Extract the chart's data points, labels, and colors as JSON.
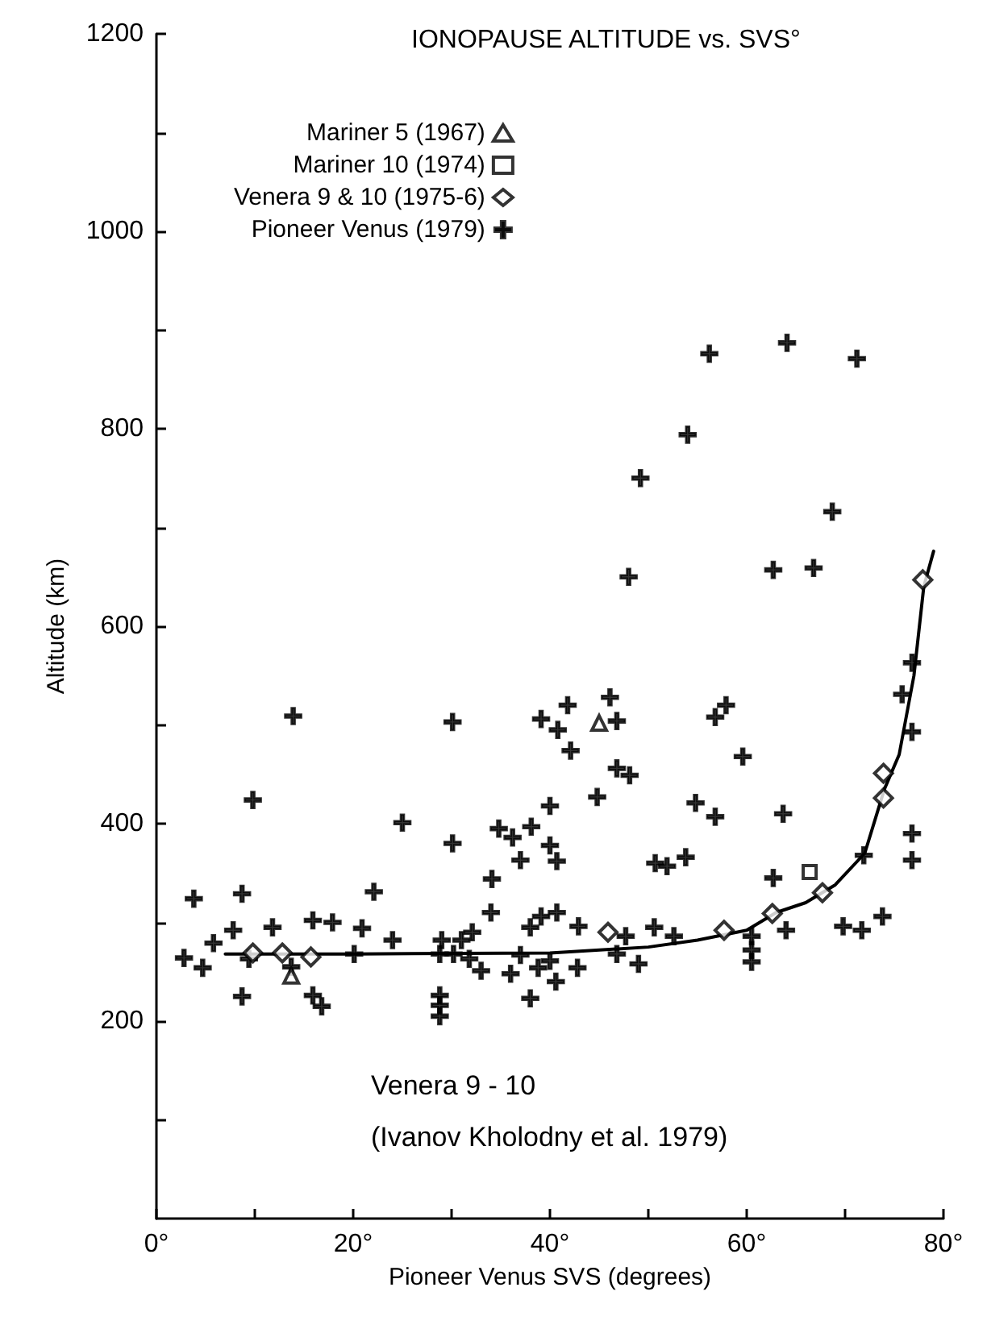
{
  "chart_data": {
    "type": "scatter",
    "title": "IONOPAUSE ALTITUDE vs. SVS°",
    "xlabel": "Pioneer Venus SVS (degrees)",
    "ylabel": "Altitude (km)",
    "annotations": [
      "Venera 9 - 10",
      "(Ivanov Kholodny et al. 1979)"
    ],
    "xlim": [
      0,
      80
    ],
    "ylim": [
      0,
      1200
    ],
    "xticks": [
      {
        "value": 0,
        "label": "0°"
      },
      {
        "value": 10,
        "label": null
      },
      {
        "value": 20,
        "label": "20°"
      },
      {
        "value": 30,
        "label": null
      },
      {
        "value": 40,
        "label": "40°"
      },
      {
        "value": 50,
        "label": null
      },
      {
        "value": 60,
        "label": "60°"
      },
      {
        "value": 70,
        "label": null
      },
      {
        "value": 80,
        "label": "80°"
      }
    ],
    "yticks": [
      {
        "value": 100,
        "label": null
      },
      200,
      {
        "value": 300,
        "label": null
      },
      400,
      {
        "value": 500,
        "label": null
      },
      600,
      {
        "value": 700,
        "label": null
      },
      800,
      {
        "value": 900,
        "label": null
      },
      1000,
      {
        "value": 1100,
        "label": null
      },
      1200
    ],
    "grid": false,
    "legend": "top left",
    "series": [
      {
        "name": "Mariner 5 (1967)",
        "color": "#000000",
        "marker": "triangle",
        "x": [
          13.7,
          45.0
        ],
        "values": [
          246,
          502
        ]
      },
      {
        "name": "Mariner 10 (1974)",
        "color": "#000000",
        "marker": "square",
        "x": [
          66.4
        ],
        "values": [
          351
        ]
      },
      {
        "name": "Venera 9 & 10 (1975-6)",
        "color": "#000000",
        "marker": "diamond",
        "x": [
          9.8,
          12.8,
          15.7,
          45.9,
          57.7,
          62.6,
          67.7,
          73.9,
          73.9,
          77.9
        ],
        "values": [
          269,
          269,
          265,
          290,
          292,
          309,
          330,
          426,
          451,
          647
        ]
      },
      {
        "name": "Pioneer Venus (1979)",
        "color": "#000000",
        "marker": "cross",
        "x": [
          2.8,
          3.8,
          4.7,
          5.8,
          7.8,
          8.7,
          8.7,
          9.8,
          9.4,
          11.8,
          13.9,
          13.7,
          15.9,
          17.9,
          15.9,
          16.8,
          20.1,
          20.9,
          22.1,
          24.0,
          25.0,
          29.0,
          28.8,
          28.8,
          28.8,
          28.8,
          30.1,
          30.1,
          31.0,
          30.2,
          32.1,
          31.8,
          33.0,
          34.1,
          34.0,
          34.8,
          36.2,
          37.0,
          38.1,
          38.0,
          39.1,
          39.1,
          40.8,
          40.0,
          40.0,
          40.7,
          40.7,
          36.0,
          38.0,
          38.8,
          40.0,
          40.6,
          37.0,
          41.8,
          42.1,
          46.1,
          46.8,
          46.8,
          48.1,
          44.8,
          56.8,
          57.9,
          59.6,
          54.8,
          56.8,
          63.7,
          50.7,
          51.9,
          53.8,
          62.7,
          71.9,
          76.8,
          76.8,
          76.8,
          75.8,
          76.8,
          69.8,
          71.7,
          73.8,
          64.0,
          60.5,
          60.5,
          60.5,
          42.9,
          42.8,
          47.7,
          46.8,
          49.0,
          50.6,
          52.6,
          56.2,
          64.1,
          71.2,
          54.0,
          49.2,
          68.7,
          48.0,
          62.7,
          66.8
        ],
        "values": [
          264,
          324,
          254,
          279,
          292,
          329,
          225,
          424,
          263,
          295,
          509,
          255,
          302,
          300,
          226,
          215,
          268,
          294,
          331,
          282,
          401,
          282,
          268,
          226,
          216,
          205,
          503,
          380,
          282,
          268,
          290,
          263,
          251,
          344,
          310,
          395,
          386,
          363,
          397,
          295,
          306,
          506,
          495,
          418,
          378,
          362,
          310,
          248,
          223,
          254,
          261,
          240,
          267,
          520,
          474,
          528,
          504,
          456,
          449,
          427,
          508,
          520,
          468,
          421,
          407,
          410,
          360,
          357,
          366,
          345,
          368,
          390,
          363,
          493,
          531,
          563,
          296,
          292,
          306,
          292,
          286,
          272,
          260,
          296,
          254,
          286,
          268,
          258,
          295,
          286,
          876,
          887,
          871,
          794,
          750,
          716,
          650,
          657,
          659
        ]
      },
      {
        "type": "line",
        "color": "#000000",
        "marker": "none",
        "line_style": "solid",
        "x": [
          7,
          20,
          40,
          50,
          55,
          60,
          63,
          66,
          69,
          72,
          74,
          75.5,
          77,
          78,
          79
        ],
        "values": [
          268,
          268,
          269,
          275,
          282,
          292,
          310,
          320,
          338,
          370,
          435,
          470,
          550,
          640,
          676
        ]
      }
    ]
  }
}
